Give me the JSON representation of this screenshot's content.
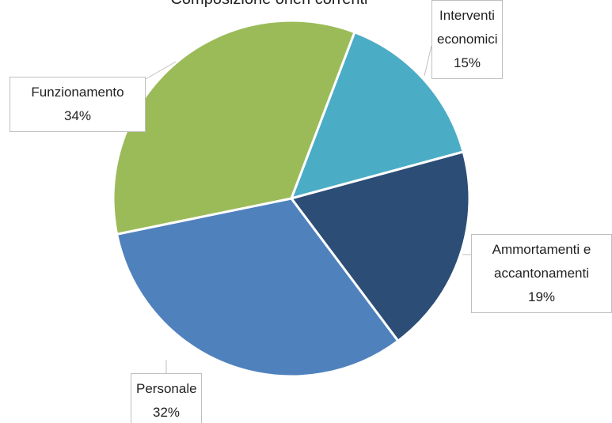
{
  "chart_data": {
    "type": "pie",
    "title": "Composizione oneri correnti",
    "categories": [
      "Interventi economici",
      "Ammortamenti e accantonamenti",
      "Personale",
      "Funzionamento"
    ],
    "values": [
      15,
      19,
      32,
      34
    ],
    "value_labels": [
      "15%",
      "19%",
      "32%",
      "34%"
    ],
    "colors": [
      "#4bacc6",
      "#2c4d75",
      "#4f81bd",
      "#9bbb59"
    ]
  }
}
